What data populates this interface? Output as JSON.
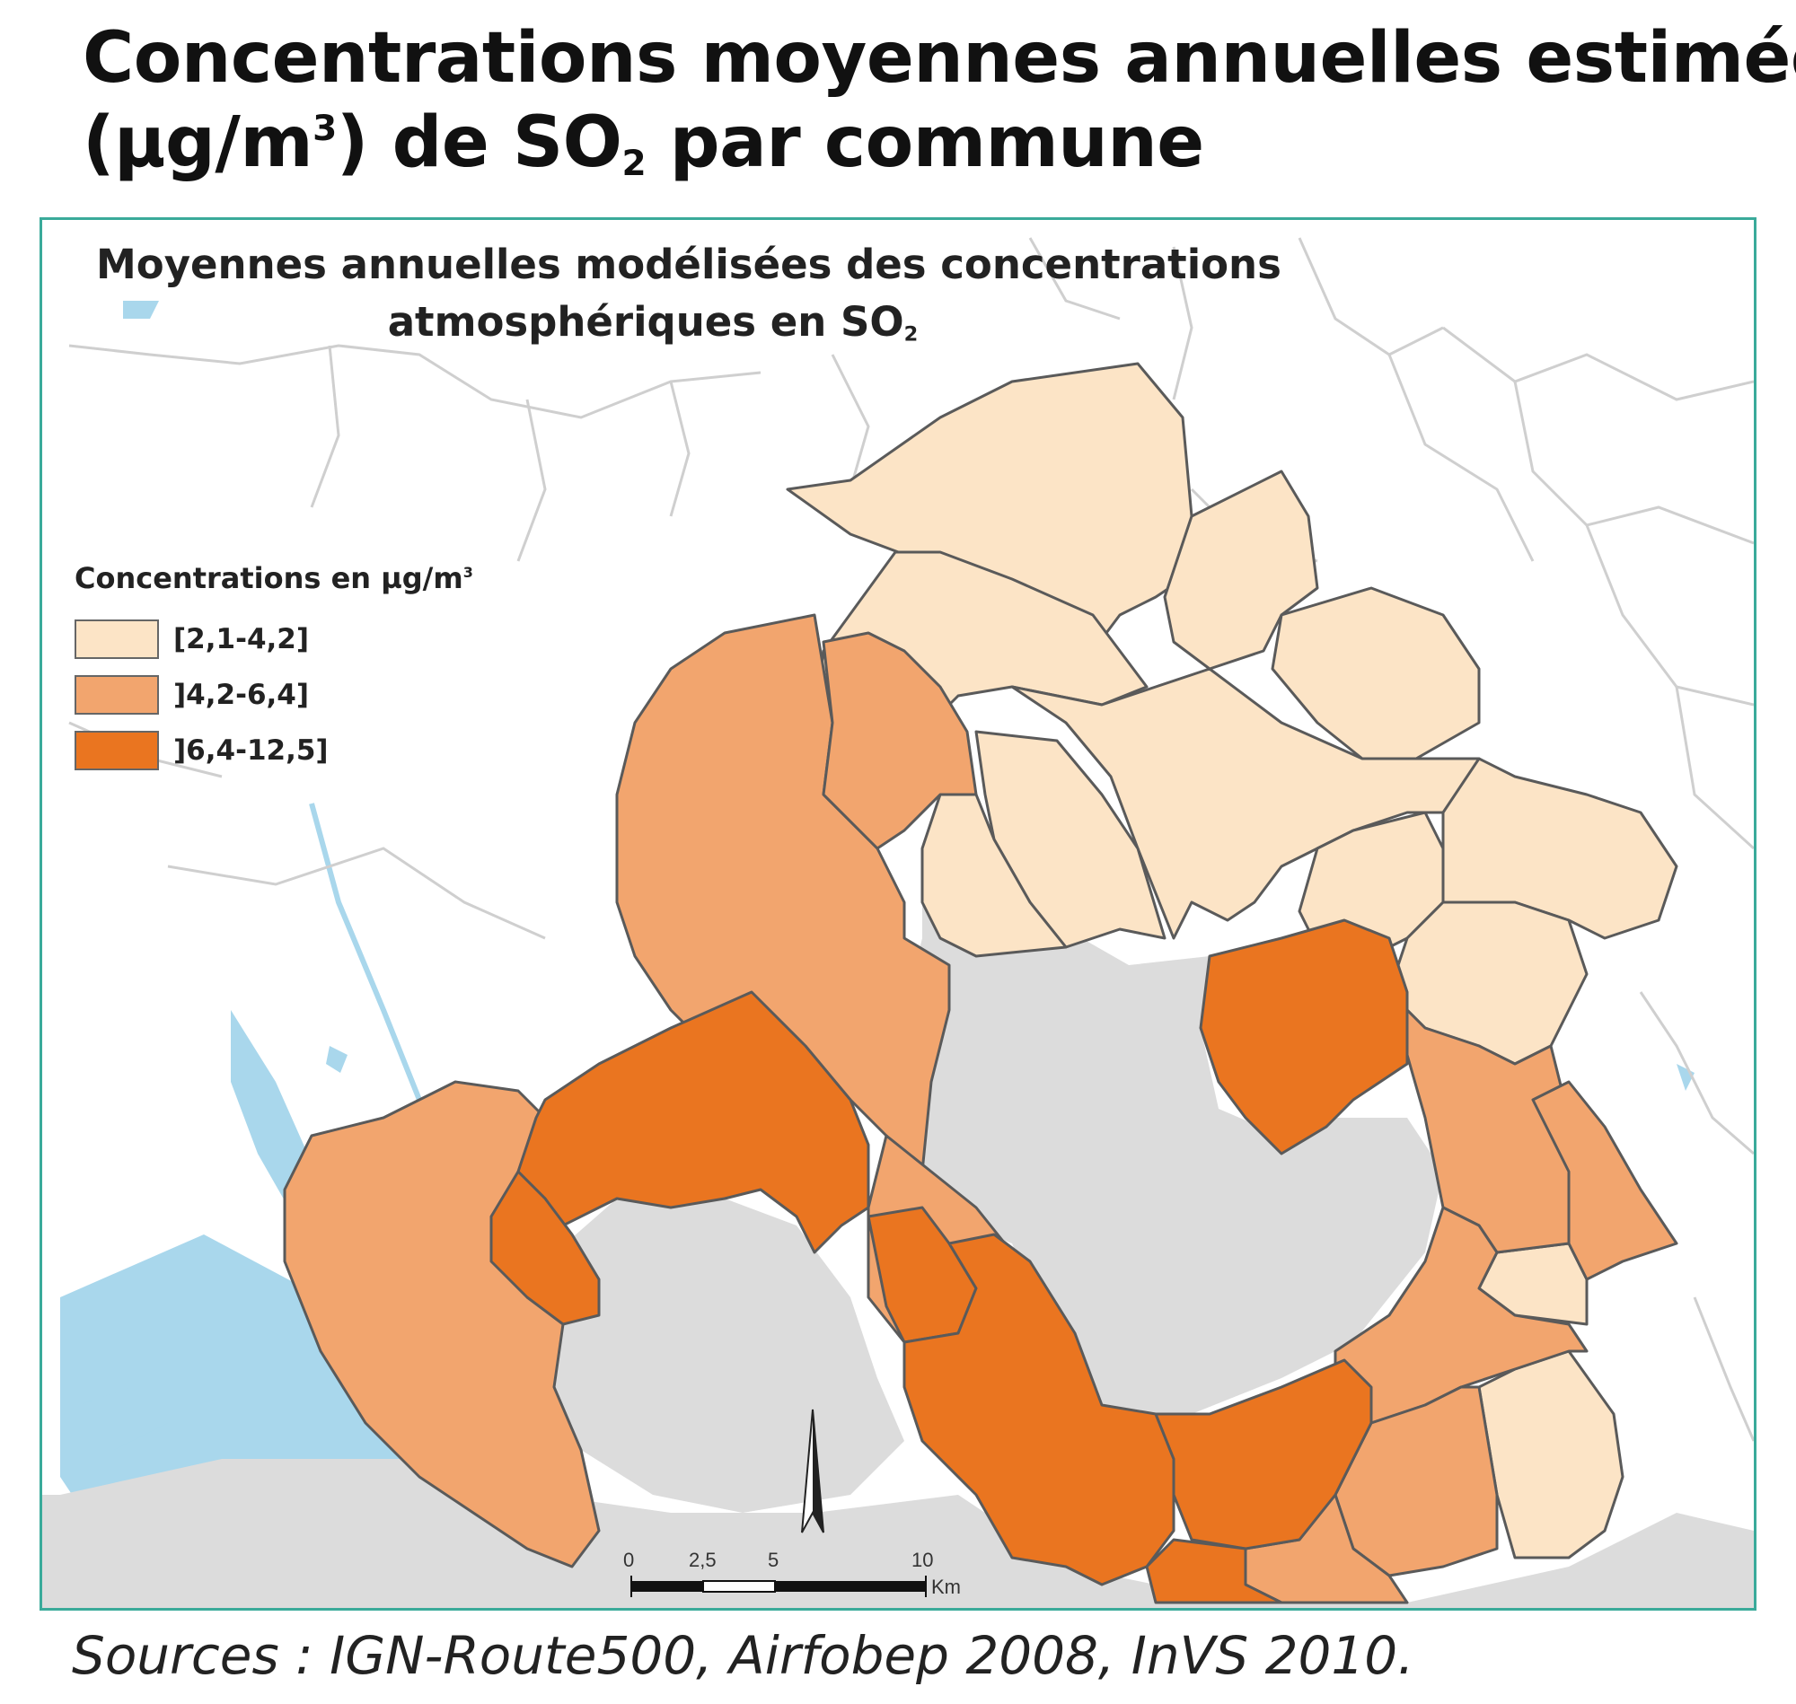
{
  "title": {
    "line1": "Concentrations moyennes annuelles estimées",
    "line2_prefix": "(µg/m",
    "line2_sup": "3",
    "line2_mid": ") de SO",
    "line2_sub": "2",
    "line2_suffix": " par commune"
  },
  "map": {
    "title_line1": "Moyennes annuelles modélisées des concentrations",
    "title_line2_prefix": "atmosphériques en SO",
    "title_line2_sub": "2",
    "legend": {
      "title_prefix": "Concentrations en µg/m",
      "title_sup": "3",
      "classes": [
        {
          "label": "[2,1-4,2]",
          "color": "#fce4c6"
        },
        {
          "label": "]4,2-6,4]",
          "color": "#f2a56e"
        },
        {
          "label": "]6,4-12,5]",
          "color": "#ea7520"
        }
      ]
    },
    "scale_bar": {
      "ticks": [
        "0",
        "2,5",
        "5",
        "10"
      ],
      "unit": "Km"
    },
    "colors": {
      "water_sea": "#dcdcdc",
      "water_lagoon": "#a9d7ec",
      "border": "#5a5a5a",
      "frame": "#3aaa9a"
    }
  },
  "source": "Sources : IGN-Route500, Airfobep 2008, InVS 2010."
}
